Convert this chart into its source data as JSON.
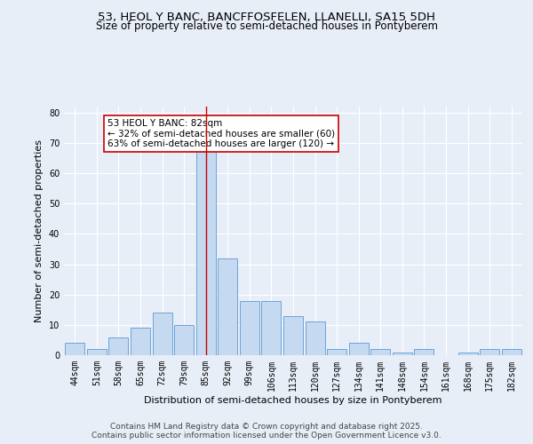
{
  "title_line1": "53, HEOL Y BANC, BANCFFOSFELEN, LLANELLI, SA15 5DH",
  "title_line2": "Size of property relative to semi-detached houses in Pontyberem",
  "xlabel": "Distribution of semi-detached houses by size in Pontyberem",
  "ylabel": "Number of semi-detached properties",
  "categories": [
    "44sqm",
    "51sqm",
    "58sqm",
    "65sqm",
    "72sqm",
    "79sqm",
    "85sqm",
    "92sqm",
    "99sqm",
    "106sqm",
    "113sqm",
    "120sqm",
    "127sqm",
    "134sqm",
    "141sqm",
    "148sqm",
    "154sqm",
    "161sqm",
    "168sqm",
    "175sqm",
    "182sqm"
  ],
  "values": [
    4,
    2,
    6,
    9,
    14,
    10,
    70,
    32,
    18,
    18,
    13,
    11,
    2,
    4,
    2,
    1,
    2,
    0,
    1,
    2,
    2
  ],
  "bar_color": "#c5d9f0",
  "bar_edge_color": "#5b9bd5",
  "vline_x_index": 6,
  "vline_color": "#cc0000",
  "annotation_text": "53 HEOL Y BANC: 82sqm\n← 32% of semi-detached houses are smaller (60)\n63% of semi-detached houses are larger (120) →",
  "annotation_box_color": "#ffffff",
  "annotation_box_edge": "#cc0000",
  "ylim": [
    0,
    82
  ],
  "yticks": [
    0,
    10,
    20,
    30,
    40,
    50,
    60,
    70,
    80
  ],
  "footer_line1": "Contains HM Land Registry data © Crown copyright and database right 2025.",
  "footer_line2": "Contains public sector information licensed under the Open Government Licence v3.0.",
  "bg_color": "#e8eef8",
  "plot_bg_color": "#e8eef8",
  "title_fontsize": 9.5,
  "subtitle_fontsize": 8.5,
  "axis_label_fontsize": 8,
  "tick_fontsize": 7,
  "annotation_fontsize": 7.5,
  "footer_fontsize": 6.5
}
